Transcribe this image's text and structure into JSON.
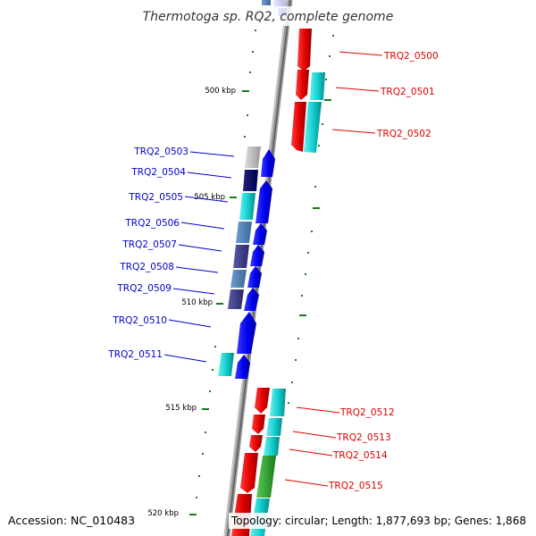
{
  "title": "Thermotoga sp. RQ2, complete genome",
  "footer": {
    "accession": "Accession: NC_010483",
    "topology": "Topology: circular; Length: 1,877,693 bp; Genes: 1,868"
  },
  "kbp_labels": [
    "500 kbp",
    "505 kbp",
    "510 kbp",
    "515 kbp",
    "520 kbp"
  ],
  "colors": {
    "plus_strand_label": "#0000cc",
    "minus_strand_label": "#e00000",
    "backbone": "#888888",
    "tick": "#1a7a1a"
  },
  "genes": [
    {
      "id": "TRQ2_0500",
      "strand": "minus"
    },
    {
      "id": "TRQ2_0501",
      "strand": "minus"
    },
    {
      "id": "TRQ2_0502",
      "strand": "minus"
    },
    {
      "id": "TRQ2_0503",
      "strand": "plus"
    },
    {
      "id": "TRQ2_0504",
      "strand": "plus"
    },
    {
      "id": "TRQ2_0505",
      "strand": "plus"
    },
    {
      "id": "TRQ2_0506",
      "strand": "plus"
    },
    {
      "id": "TRQ2_0507",
      "strand": "plus"
    },
    {
      "id": "TRQ2_0508",
      "strand": "plus"
    },
    {
      "id": "TRQ2_0509",
      "strand": "plus"
    },
    {
      "id": "TRQ2_0510",
      "strand": "plus"
    },
    {
      "id": "TRQ2_0511",
      "strand": "plus"
    },
    {
      "id": "TRQ2_0512",
      "strand": "minus"
    },
    {
      "id": "TRQ2_0513",
      "strand": "minus"
    },
    {
      "id": "TRQ2_0514",
      "strand": "minus"
    },
    {
      "id": "TRQ2_0515",
      "strand": "minus"
    }
  ]
}
